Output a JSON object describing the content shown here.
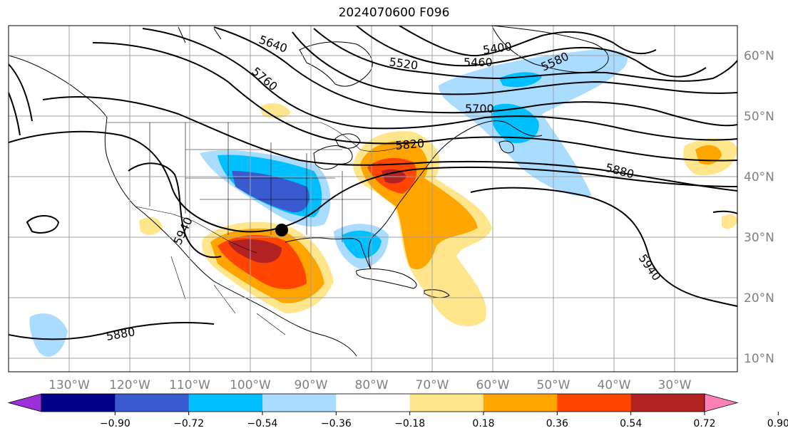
{
  "title": "2024070600 F096",
  "map": {
    "lon_labels": [
      "130°W",
      "120°W",
      "110°W",
      "100°W",
      "90°W",
      "80°W",
      "70°W",
      "60°W",
      "50°W",
      "40°W",
      "30°W"
    ],
    "lat_labels": [
      "60°N",
      "50°N",
      "40°N",
      "30°N",
      "20°N",
      "10°N"
    ],
    "contour_labels": [
      "5640",
      "5520",
      "5400",
      "5460",
      "5580",
      "5760",
      "5700",
      "5820",
      "5880",
      "5940",
      "5940",
      "5880"
    ],
    "grid": true,
    "marker": "storm-position-dot"
  },
  "colorbar": {
    "ticks": [
      "−0.90",
      "−0.72",
      "−0.54",
      "−0.36",
      "−0.18",
      "0.18",
      "0.36",
      "0.54",
      "0.72",
      "0.90"
    ],
    "colors": [
      "#9b30d9",
      "#00008b",
      "#3a5bd0",
      "#00bfff",
      "#aadcff",
      "#ffffff",
      "#ffe68c",
      "#ffa500",
      "#ff4500",
      "#b22222",
      "#ff80b4"
    ]
  }
}
